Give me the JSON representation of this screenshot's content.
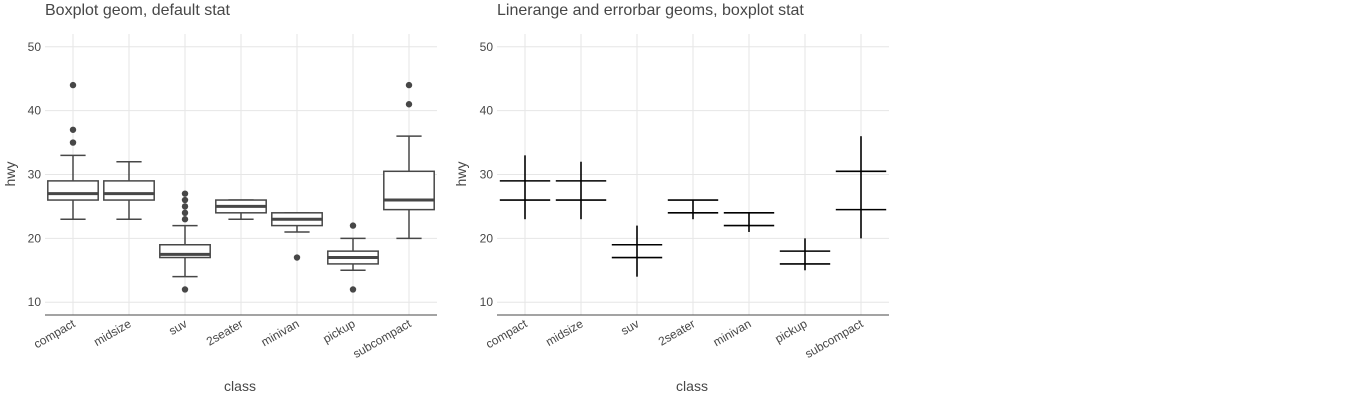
{
  "chart_data": [
    {
      "type": "boxplot",
      "title": "Boxplot geom, default stat",
      "xlabel": "class",
      "ylabel": "hwy",
      "ylim": [
        8,
        52
      ],
      "yticks": [
        10,
        20,
        30,
        40,
        50
      ],
      "grid": true,
      "categories": [
        "compact",
        "midsize",
        "suv",
        "2seater",
        "minivan",
        "pickup",
        "subcompact"
      ],
      "boxes": [
        {
          "category": "compact",
          "lower": 23,
          "q1": 26,
          "median": 27,
          "q3": 29,
          "upper": 33,
          "outliers": [
            35,
            37,
            44
          ]
        },
        {
          "category": "midsize",
          "lower": 23,
          "q1": 26,
          "median": 27,
          "q3": 29,
          "upper": 32,
          "outliers": []
        },
        {
          "category": "suv",
          "lower": 14,
          "q1": 17,
          "median": 17.5,
          "q3": 19,
          "upper": 22,
          "outliers": [
            12,
            23,
            24,
            25,
            26,
            27
          ]
        },
        {
          "category": "2seater",
          "lower": 23,
          "q1": 24,
          "median": 25,
          "q3": 26,
          "upper": 26,
          "outliers": []
        },
        {
          "category": "minivan",
          "lower": 21,
          "q1": 22,
          "median": 23,
          "q3": 24,
          "upper": 24,
          "outliers": [
            17
          ]
        },
        {
          "category": "pickup",
          "lower": 15,
          "q1": 16,
          "median": 17,
          "q3": 18,
          "upper": 20,
          "outliers": [
            12,
            22
          ]
        },
        {
          "category": "subcompact",
          "lower": 20,
          "q1": 24.5,
          "median": 26,
          "q3": 30.5,
          "upper": 36,
          "outliers": [
            41,
            44
          ]
        }
      ]
    },
    {
      "type": "errorbar",
      "title": "Linerange and errorbar geoms, boxplot stat",
      "xlabel": "class",
      "ylabel": "hwy",
      "ylim": [
        8,
        52
      ],
      "yticks": [
        10,
        20,
        30,
        40,
        50
      ],
      "grid": true,
      "categories": [
        "compact",
        "midsize",
        "suv",
        "2seater",
        "minivan",
        "pickup",
        "subcompact"
      ],
      "ranges": [
        {
          "category": "compact",
          "ymin": 23,
          "lower": 26,
          "upper": 29,
          "ymax": 33
        },
        {
          "category": "midsize",
          "ymin": 23,
          "lower": 26,
          "upper": 29,
          "ymax": 32
        },
        {
          "category": "suv",
          "ymin": 14,
          "lower": 17,
          "upper": 19,
          "ymax": 22
        },
        {
          "category": "2seater",
          "ymin": 23,
          "lower": 24,
          "upper": 26,
          "ymax": 26
        },
        {
          "category": "minivan",
          "ymin": 21,
          "lower": 22,
          "upper": 24,
          "ymax": 24
        },
        {
          "category": "pickup",
          "ymin": 15,
          "lower": 16,
          "upper": 18,
          "ymax": 20
        },
        {
          "category": "subcompact",
          "ymin": 20,
          "lower": 24.5,
          "upper": 30.5,
          "ymax": 36
        }
      ]
    }
  ]
}
